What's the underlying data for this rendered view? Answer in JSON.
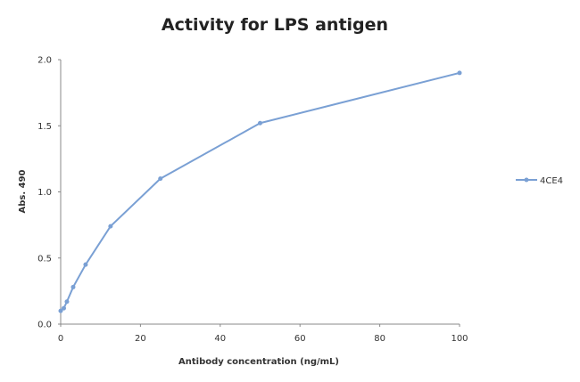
{
  "chart_data": {
    "type": "line",
    "title": "Activity for LPS antigen",
    "xlabel": "Antibody concentration    (ng/mL)",
    "ylabel": "Abs. 490",
    "xlim": [
      0,
      100
    ],
    "ylim": [
      0,
      2.0
    ],
    "xticks": [
      "0",
      "20",
      "40",
      "60",
      "80",
      "100"
    ],
    "yticks": [
      "0.0",
      "0.5",
      "1.0",
      "1.5",
      "2.0"
    ],
    "grid": false,
    "legend_position": "right",
    "series": [
      {
        "name": "4CE4",
        "color": "#7aa0d4",
        "x": [
          0,
          0.78,
          1.56,
          3.13,
          6.25,
          12.5,
          25,
          50,
          100
        ],
        "y": [
          0.1,
          0.12,
          0.17,
          0.28,
          0.45,
          0.74,
          1.1,
          1.52,
          1.9
        ]
      }
    ]
  }
}
